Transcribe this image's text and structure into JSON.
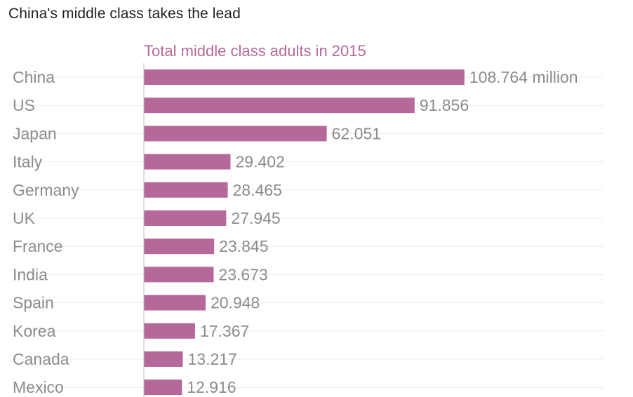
{
  "chart_data": {
    "type": "bar",
    "orientation": "horizontal",
    "title": "China's middle class takes the lead",
    "subtitle": "Total middle class adults in 2015",
    "categories": [
      "China",
      "US",
      "Japan",
      "Italy",
      "Germany",
      "UK",
      "France",
      "India",
      "Spain",
      "Korea",
      "Canada",
      "Mexico"
    ],
    "series": [
      {
        "values": [
          108.764,
          91.856,
          62.051,
          29.402,
          28.465,
          27.945,
          23.845,
          23.673,
          20.948,
          17.367,
          13.217,
          12.916
        ]
      }
    ],
    "data_labels": [
      "108.764 million",
      "91.856",
      "62.051",
      "29.402",
      "28.465",
      "27.945",
      "23.845",
      "23.673",
      "20.948",
      "17.367",
      "13.217",
      "12.916"
    ],
    "xlim": [
      0,
      140
    ],
    "grid": true,
    "colors": {
      "bar": "#b5699a",
      "subtitle": "#b5699a",
      "label": "#8c8c8c",
      "gridline": "#ececec",
      "axis": "#bbbbbb"
    }
  }
}
